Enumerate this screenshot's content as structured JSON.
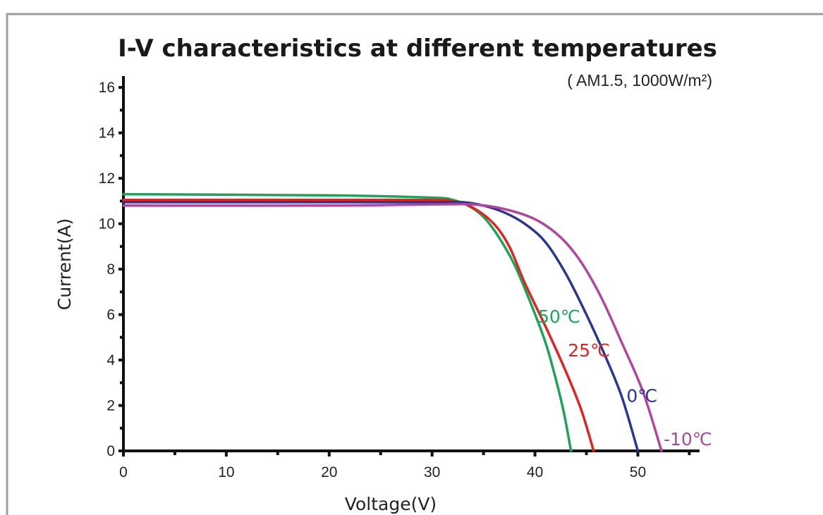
{
  "chart_data": {
    "type": "line",
    "title": "I-V characteristics at different temperatures",
    "subtitle": "( AM1.5, 1000W/m²)",
    "xlabel": "Voltage(V)",
    "ylabel": "Current(A)",
    "xlim": [
      0,
      56
    ],
    "ylim": [
      0,
      16.5
    ],
    "x_ticks": [
      0,
      10,
      20,
      30,
      40,
      50
    ],
    "y_ticks": [
      0,
      2,
      4,
      6,
      8,
      10,
      12,
      14,
      16
    ],
    "grid": false,
    "series": [
      {
        "name": "50℃",
        "color": "#1ea35a",
        "points": [
          [
            0,
            11.3
          ],
          [
            20,
            11.25
          ],
          [
            30,
            11.15
          ],
          [
            32,
            11.05
          ],
          [
            33.5,
            10.8
          ],
          [
            35,
            10.3
          ],
          [
            36.5,
            9.4
          ],
          [
            38,
            8.2
          ],
          [
            39.5,
            6.6
          ],
          [
            41,
            4.8
          ],
          [
            42,
            3.2
          ],
          [
            42.8,
            1.7
          ],
          [
            43.5,
            0
          ]
        ]
      },
      {
        "name": "25℃",
        "color": "#e02424",
        "points": [
          [
            0,
            11.05
          ],
          [
            20,
            11.05
          ],
          [
            30,
            11.05
          ],
          [
            32,
            11.0
          ],
          [
            34,
            10.7
          ],
          [
            36,
            10.0
          ],
          [
            37.5,
            9.0
          ],
          [
            39,
            7.4
          ],
          [
            41,
            5.5
          ],
          [
            43,
            3.5
          ],
          [
            44.5,
            1.8
          ],
          [
            45.7,
            0
          ]
        ]
      },
      {
        "name": "0℃",
        "color": "#2b3594",
        "points": [
          [
            0,
            10.95
          ],
          [
            20,
            10.95
          ],
          [
            30,
            10.95
          ],
          [
            33,
            10.95
          ],
          [
            35,
            10.8
          ],
          [
            37,
            10.5
          ],
          [
            39,
            10.0
          ],
          [
            41,
            9.2
          ],
          [
            43,
            7.8
          ],
          [
            45,
            6.0
          ],
          [
            47,
            4.0
          ],
          [
            48.5,
            2.3
          ],
          [
            50,
            0
          ]
        ]
      },
      {
        "name": "-10℃",
        "color": "#b2459d",
        "points": [
          [
            0,
            10.8
          ],
          [
            20,
            10.8
          ],
          [
            30,
            10.85
          ],
          [
            34,
            10.85
          ],
          [
            37,
            10.65
          ],
          [
            40,
            10.2
          ],
          [
            42.5,
            9.4
          ],
          [
            44.5,
            8.3
          ],
          [
            46.5,
            6.7
          ],
          [
            48.5,
            4.7
          ],
          [
            50.5,
            2.6
          ],
          [
            52.3,
            0
          ]
        ]
      }
    ]
  }
}
